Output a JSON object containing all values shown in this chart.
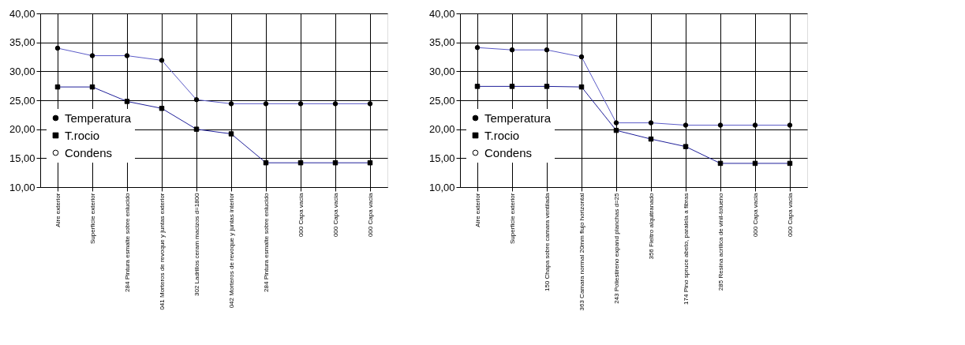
{
  "chart_data": [
    {
      "type": "line",
      "categories": [
        "Aire exterior",
        "Superficie exterior",
        "284 Pintura esmalte sobre enlucido",
        "041 Morteros de revoque y juntas exterior",
        "302 Ladrillos ceram macizos d=1800",
        "042 Morteros de revoque y juntas interior",
        "284 Pintura esmalte sobre enlucido",
        "000 Capa vacia",
        "000 Capa vacia",
        "000 Capa vacia"
      ],
      "series": [
        {
          "name": "Temperatura",
          "type": "line",
          "color": "#5c5cc8",
          "marker": "circle",
          "values": [
            34.0,
            32.7,
            32.7,
            31.9,
            25.1,
            24.4,
            24.4,
            24.4,
            24.4,
            24.4
          ]
        },
        {
          "name": "T.rocio",
          "type": "line",
          "color": "#20209a",
          "marker": "square",
          "values": [
            27.3,
            27.3,
            24.8,
            23.6,
            20.0,
            19.2,
            14.2,
            14.2,
            14.2,
            14.2
          ]
        },
        {
          "name": "Condens",
          "type": "scatter",
          "color": "#000000",
          "marker": "circle",
          "values": [
            null,
            null,
            null,
            null,
            null,
            null,
            null,
            null,
            null,
            null
          ]
        }
      ],
      "ylim": [
        10,
        40
      ],
      "yticks": [
        {
          "value": 10,
          "label": "10,00"
        },
        {
          "value": 15,
          "label": "15,00"
        },
        {
          "value": 20,
          "label": "20,00"
        },
        {
          "value": 25,
          "label": "25,00"
        },
        {
          "value": 30,
          "label": "30,00"
        },
        {
          "value": 35,
          "label": "35,00"
        },
        {
          "value": 40,
          "label": "40,00"
        }
      ],
      "grid": true,
      "legend": "left"
    },
    {
      "type": "line",
      "categories": [
        "Aire exterior",
        "Superficie exterior",
        "150 Chapa sobre camara ventilada",
        "363 Camara normal 20mm flujo horizontal",
        "243 Poliestireno expand planchas d=25",
        "356 Fieltro alquitranado",
        "174 Pino spruce abeto, paralela a fibras",
        "285 Resina acrilica de vinil-tolueno",
        "000 Capa vacia",
        "000 Capa vacia"
      ],
      "series": [
        {
          "name": "Temperatura",
          "type": "line",
          "color": "#5c5cc8",
          "marker": "circle",
          "values": [
            34.1,
            33.7,
            33.7,
            32.5,
            21.1,
            21.1,
            20.7,
            20.7,
            20.7,
            20.7
          ]
        },
        {
          "name": "T.rocio",
          "type": "line",
          "color": "#20209a",
          "marker": "square",
          "values": [
            27.4,
            27.4,
            27.4,
            27.3,
            19.8,
            18.3,
            17.0,
            14.1,
            14.1,
            14.1
          ]
        },
        {
          "name": "Condens",
          "type": "scatter",
          "color": "#000000",
          "marker": "circle",
          "values": [
            null,
            null,
            null,
            null,
            null,
            null,
            null,
            null,
            null,
            null
          ]
        }
      ],
      "ylim": [
        10,
        40
      ],
      "yticks": [
        {
          "value": 10,
          "label": "10,00"
        },
        {
          "value": 15,
          "label": "15,00"
        },
        {
          "value": 20,
          "label": "20,00"
        },
        {
          "value": 25,
          "label": "25,00"
        },
        {
          "value": 30,
          "label": "30,00"
        },
        {
          "value": 35,
          "label": "35,00"
        },
        {
          "value": 40,
          "label": "40,00"
        }
      ],
      "grid": true,
      "legend": "left"
    }
  ]
}
